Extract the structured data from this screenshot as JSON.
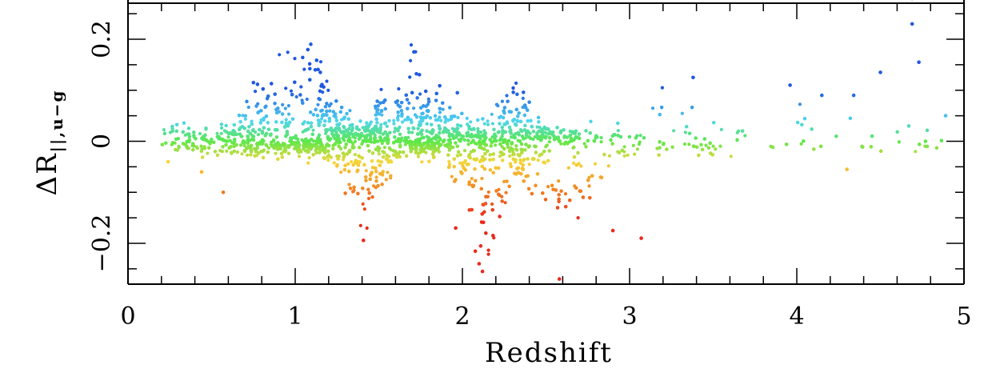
{
  "chart_data": {
    "type": "scatter",
    "xlabel": "Redshift",
    "ylabel": {
      "main": "ΔR",
      "subscript": "||,u−g"
    },
    "xlim": [
      0,
      5
    ],
    "ylim": [
      -0.28,
      0.28
    ],
    "x_ticks": [
      "0",
      "1",
      "2",
      "3",
      "4",
      "5"
    ],
    "y_ticks": [
      "−0.2",
      "0",
      "0.2"
    ],
    "grid": false,
    "legend": "none",
    "color_scale": "rainbow by ΔR: red (negative) → yellow → green (≈0) → cyan → blue (positive)",
    "colors": {
      "red": "#e8291c",
      "orange": "#f28a22",
      "yellow": "#f5d63a",
      "green": "#5ce84a",
      "cyan": "#4fd6f0",
      "blue": "#1f57e0"
    },
    "outliers": [
      {
        "x": 0.24,
        "y": -0.04
      },
      {
        "x": 0.44,
        "y": -0.06
      },
      {
        "x": 0.57,
        "y": -0.1
      },
      {
        "x": 0.75,
        "y": 0.115
      },
      {
        "x": 1.12,
        "y": 0.14
      },
      {
        "x": 1.15,
        "y": 0.135
      },
      {
        "x": 1.71,
        "y": 0.175
      },
      {
        "x": 1.97,
        "y": 0.095
      },
      {
        "x": 1.96,
        "y": -0.17
      },
      {
        "x": 2.1,
        "y": -0.24
      },
      {
        "x": 2.14,
        "y": -0.18
      },
      {
        "x": 2.12,
        "y": -0.255
      },
      {
        "x": 2.58,
        "y": -0.27
      },
      {
        "x": 2.9,
        "y": -0.175
      },
      {
        "x": 3.07,
        "y": -0.19
      },
      {
        "x": 3.38,
        "y": 0.125
      },
      {
        "x": 3.96,
        "y": 0.11
      },
      {
        "x": 4.15,
        "y": 0.09
      },
      {
        "x": 4.3,
        "y": -0.055
      },
      {
        "x": 4.32,
        "y": 0.045
      },
      {
        "x": 4.34,
        "y": 0.09
      },
      {
        "x": 4.39,
        "y": -0.01
      },
      {
        "x": 4.45,
        "y": 0.01
      },
      {
        "x": 4.5,
        "y": 0.135
      },
      {
        "x": 4.67,
        "y": 0.03
      },
      {
        "x": 4.69,
        "y": 0.23
      },
      {
        "x": 4.73,
        "y": 0.155
      },
      {
        "x": 4.77,
        "y": 0.0
      },
      {
        "x": 4.78,
        "y": -0.01
      },
      {
        "x": 4.89,
        "y": 0.05
      },
      {
        "x": 4.69,
        "y": 0.285
      }
    ],
    "density_bumps": [
      {
        "center": 0.85,
        "width": 0.18,
        "amp": 0.11
      },
      {
        "center": 1.1,
        "width": 0.15,
        "amp": 0.12
      },
      {
        "center": 1.7,
        "width": 0.2,
        "amp": 0.13
      },
      {
        "center": 2.3,
        "width": 0.12,
        "amp": 0.08
      },
      {
        "center": 3.25,
        "width": 0.15,
        "amp": 0.1
      },
      {
        "center": 3.95,
        "width": 0.2,
        "amp": 0.08
      }
    ],
    "density_dips": [
      {
        "center": 1.42,
        "width": 0.12,
        "amp": -0.18
      },
      {
        "center": 2.12,
        "width": 0.15,
        "amp": -0.17
      },
      {
        "center": 2.65,
        "width": 0.3,
        "amp": -0.12
      }
    ]
  }
}
